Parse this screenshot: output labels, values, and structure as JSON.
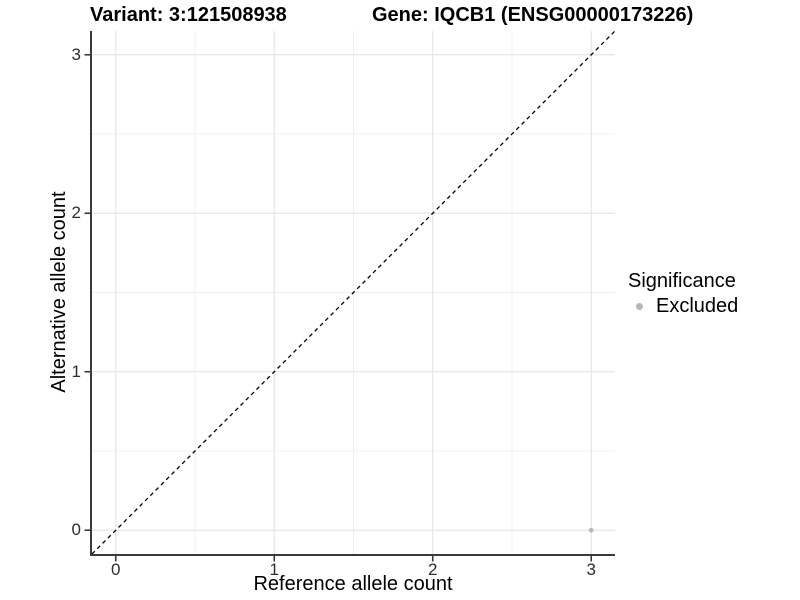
{
  "header": {
    "variant_title": "Variant: 3:121508938",
    "gene_title": "Gene: IQCB1 (ENSG00000173226)"
  },
  "axes": {
    "x_label": "Reference allele count",
    "y_label": "Alternative allele count"
  },
  "legend": {
    "title": "Significance",
    "items": [
      {
        "label": "Excluded",
        "color": "#b7b7b7"
      }
    ]
  },
  "chart_data": {
    "type": "scatter",
    "title": "Variant: 3:121508938   Gene: IQCB1 (ENSG00000173226)",
    "xlabel": "Reference allele count",
    "ylabel": "Alternative allele count",
    "xlim": [
      -0.15,
      3.15
    ],
    "ylim": [
      -0.15,
      3.15
    ],
    "x_ticks": [
      0,
      1,
      2,
      3
    ],
    "y_ticks": [
      0,
      1,
      2,
      3
    ],
    "minor_ticks": [
      0.5,
      1.5,
      2.5
    ],
    "grid": true,
    "legend_position": "right",
    "series": [
      {
        "name": "Excluded",
        "points": [
          {
            "x": 3,
            "y": 0
          }
        ],
        "color": "#b7b7b7"
      }
    ],
    "reference_line": {
      "type": "identity y=x",
      "style": "dashed",
      "color": "#000000"
    },
    "colors": {
      "point_excluded": "#b7b7b7",
      "grid_major": "#e6e6e6",
      "grid_minor": "#f0f0f0",
      "axis_line": "#3a3a3a",
      "tick_label": "#2e2e2e"
    }
  }
}
